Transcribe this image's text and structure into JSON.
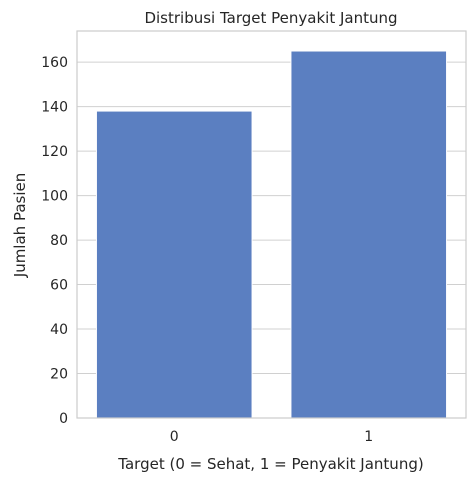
{
  "chart_data": {
    "type": "bar",
    "title": "Distribusi Target Penyakit Jantung",
    "xlabel": "Target (0 = Sehat, 1 = Penyakit Jantung)",
    "ylabel": "Jumlah Pasien",
    "categories": [
      "0",
      "1"
    ],
    "values": [
      138,
      165
    ],
    "ylim": [
      0,
      174
    ],
    "yticks": [
      0,
      20,
      40,
      60,
      80,
      100,
      120,
      140,
      160
    ],
    "grid": "horizontal",
    "colors": {
      "bar": "#5b7fc1",
      "grid": "#d0d0d0",
      "axes": "#cccccc",
      "text": "#262626"
    }
  }
}
